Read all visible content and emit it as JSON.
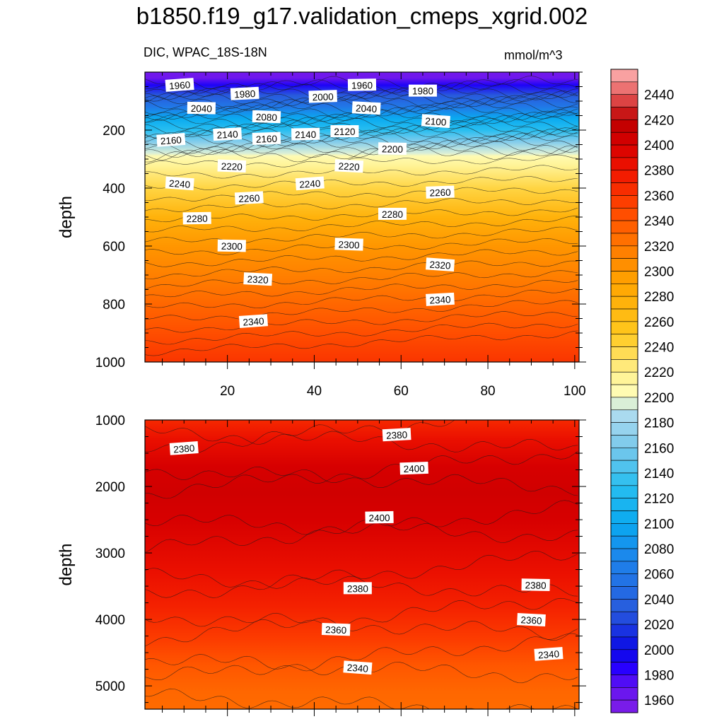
{
  "title": "b1850.f19_g17.validation_cmeps_xgrid.002",
  "variable_label": "DIC, WPAC_18S-18N",
  "units": "mmol/m^3",
  "chart_data": [
    {
      "type": "heatmap",
      "panel": "upper",
      "ylabel": "depth",
      "xlim": [
        1,
        101
      ],
      "ylim": [
        1000,
        0
      ],
      "xticks": [
        20,
        40,
        60,
        80,
        100
      ],
      "yticks": [
        200,
        400,
        600,
        800,
        1000
      ],
      "contour_labels": [
        {
          "value": "1960",
          "x": 9,
          "y": 45
        },
        {
          "value": "1980",
          "x": 24,
          "y": 75
        },
        {
          "value": "2000",
          "x": 42,
          "y": 85
        },
        {
          "value": "1960",
          "x": 51,
          "y": 45
        },
        {
          "value": "1980",
          "x": 65,
          "y": 65
        },
        {
          "value": "2040",
          "x": 14,
          "y": 125
        },
        {
          "value": "2080",
          "x": 29,
          "y": 155
        },
        {
          "value": "2040",
          "x": 52,
          "y": 125
        },
        {
          "value": "2100",
          "x": 68,
          "y": 170
        },
        {
          "value": "2160",
          "x": 7,
          "y": 235
        },
        {
          "value": "2140",
          "x": 20,
          "y": 215
        },
        {
          "value": "2160",
          "x": 29,
          "y": 230
        },
        {
          "value": "2140",
          "x": 38,
          "y": 215
        },
        {
          "value": "2120",
          "x": 47,
          "y": 205
        },
        {
          "value": "2200",
          "x": 58,
          "y": 265
        },
        {
          "value": "2220",
          "x": 21,
          "y": 325
        },
        {
          "value": "2220",
          "x": 48,
          "y": 325
        },
        {
          "value": "2240",
          "x": 9,
          "y": 385
        },
        {
          "value": "2240",
          "x": 39,
          "y": 385
        },
        {
          "value": "2260",
          "x": 25,
          "y": 435
        },
        {
          "value": "2260",
          "x": 69,
          "y": 415
        },
        {
          "value": "2280",
          "x": 13,
          "y": 505
        },
        {
          "value": "2280",
          "x": 58,
          "y": 490
        },
        {
          "value": "2300",
          "x": 21,
          "y": 600
        },
        {
          "value": "2300",
          "x": 48,
          "y": 595
        },
        {
          "value": "2320",
          "x": 27,
          "y": 715
        },
        {
          "value": "2320",
          "x": 69,
          "y": 665
        },
        {
          "value": "2340",
          "x": 26,
          "y": 860
        },
        {
          "value": "2340",
          "x": 69,
          "y": 785
        }
      ]
    },
    {
      "type": "heatmap",
      "panel": "lower",
      "ylabel": "depth",
      "xlim": [
        1,
        101
      ],
      "ylim": [
        5350,
        1000
      ],
      "yticks": [
        1000,
        2000,
        3000,
        4000,
        5000
      ],
      "contour_labels": [
        {
          "value": "2380",
          "x": 10,
          "y": 1430
        },
        {
          "value": "2380",
          "x": 59,
          "y": 1225
        },
        {
          "value": "2400",
          "x": 63,
          "y": 1730
        },
        {
          "value": "2400",
          "x": 55,
          "y": 2470
        },
        {
          "value": "2380",
          "x": 50,
          "y": 3535
        },
        {
          "value": "2380",
          "x": 91,
          "y": 3485
        },
        {
          "value": "2360",
          "x": 45,
          "y": 4155
        },
        {
          "value": "2360",
          "x": 90,
          "y": 4010
        },
        {
          "value": "2340",
          "x": 50,
          "y": 4730
        },
        {
          "value": "2340",
          "x": 94,
          "y": 4525
        }
      ]
    }
  ],
  "colorbar": {
    "min": 1950,
    "max": 2460,
    "step": 10,
    "labels": [
      "2440",
      "2420",
      "2400",
      "2380",
      "2360",
      "2340",
      "2320",
      "2300",
      "2280",
      "2260",
      "2240",
      "2220",
      "2200",
      "2180",
      "2160",
      "2140",
      "2120",
      "2100",
      "2080",
      "2060",
      "2040",
      "2020",
      "2000",
      "1980",
      "1960"
    ]
  }
}
